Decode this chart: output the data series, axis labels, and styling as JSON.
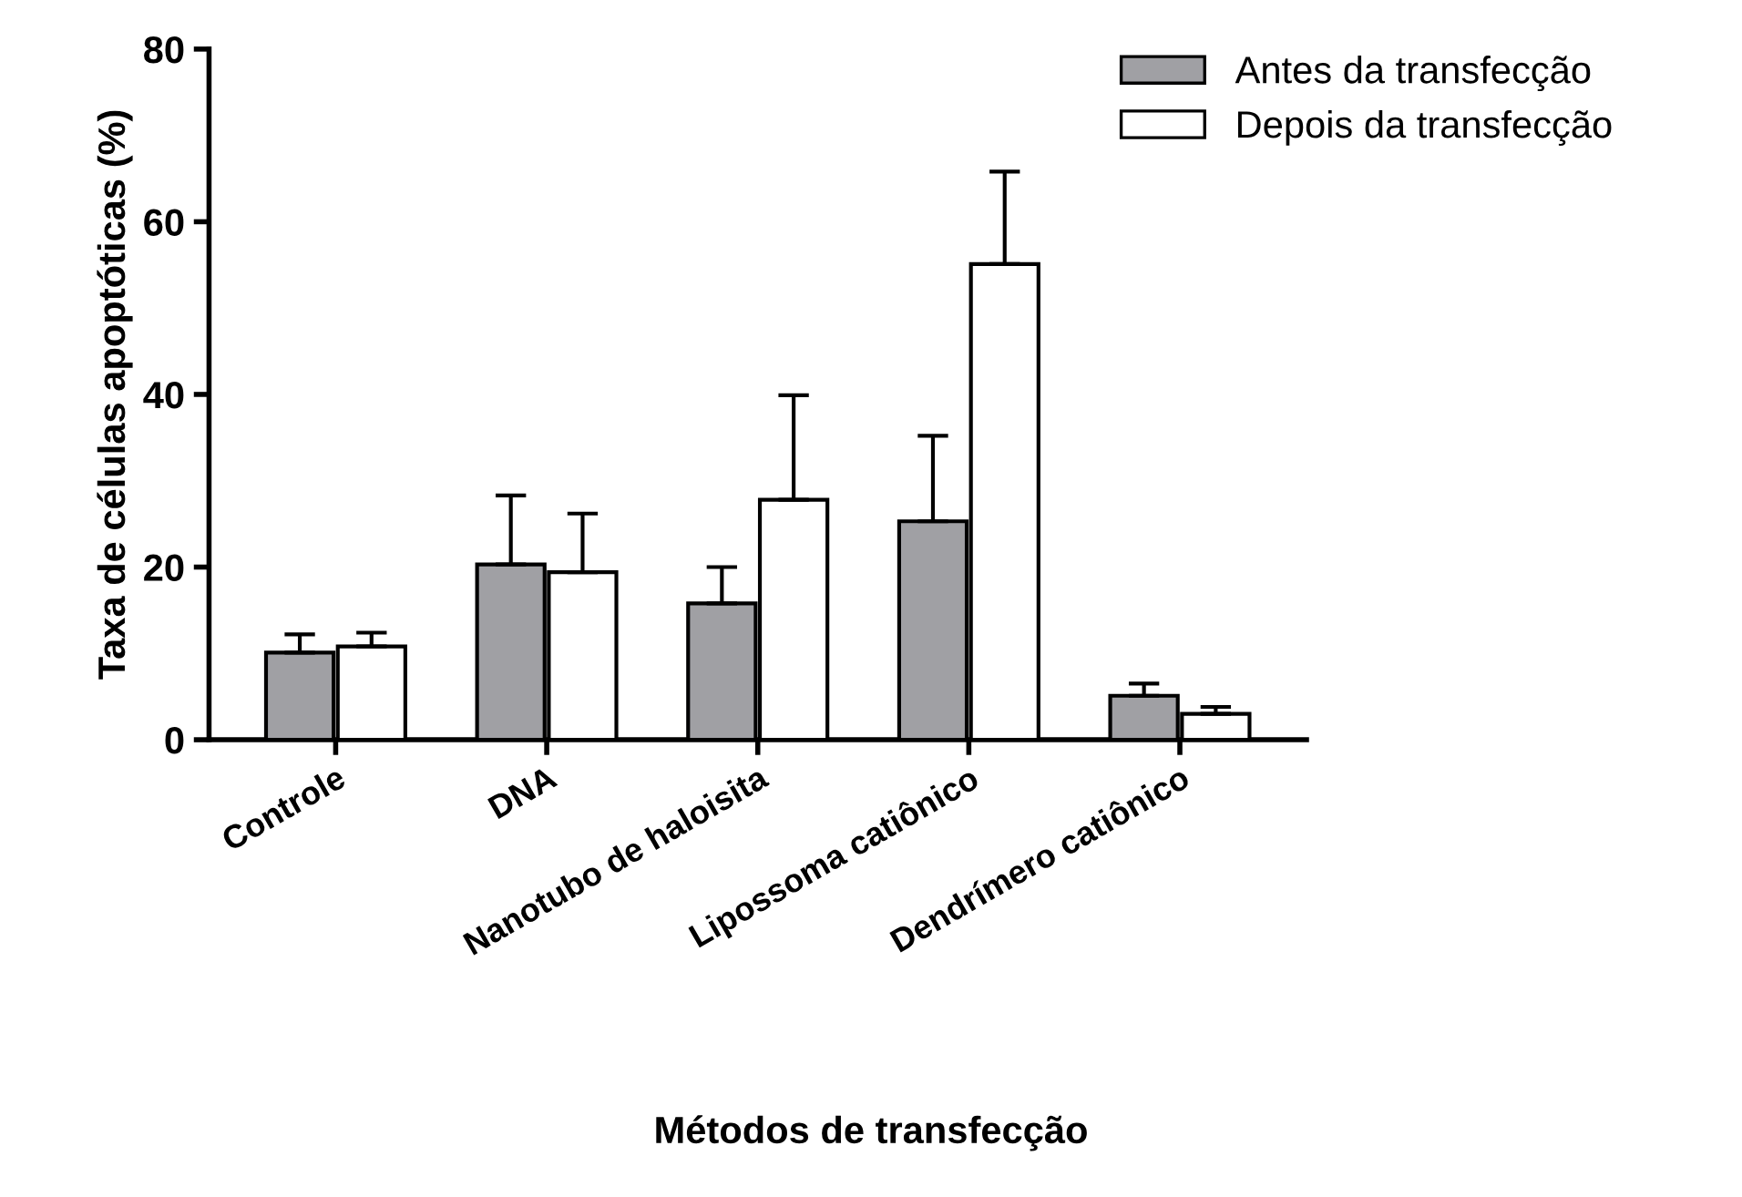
{
  "chart_data": {
    "type": "bar",
    "xlabel": "Métodos de transfecção",
    "ylabel": "Taxa de células apoptóticas (%)",
    "categories": [
      "Controle",
      "DNA",
      "Nanotubo de haloisita",
      "Lipossoma catiônico",
      "Dendrímero catiônico"
    ],
    "series": [
      {
        "name": "Antes da transfecção",
        "color": "#a0a0a4",
        "values": [
          10.1,
          20.3,
          15.8,
          25.3,
          5.1
        ],
        "errors": [
          [
            10.1,
            12.2
          ],
          [
            20.3,
            28.3
          ],
          [
            15.8,
            20.0
          ],
          [
            25.3,
            35.2
          ],
          [
            5.1,
            6.5
          ]
        ]
      },
      {
        "name": "Depois da transfecção",
        "color": "#ffffff",
        "values": [
          10.8,
          19.4,
          27.8,
          55.1,
          3.0
        ],
        "errors": [
          [
            10.8,
            12.4
          ],
          [
            19.4,
            26.2
          ],
          [
            27.8,
            39.9
          ],
          [
            55.1,
            65.8
          ],
          [
            3.0,
            3.8
          ]
        ]
      }
    ],
    "ylim": [
      0,
      80
    ],
    "yticks": [
      0,
      20,
      40,
      60,
      80
    ],
    "grid": false,
    "legend": "top right"
  }
}
